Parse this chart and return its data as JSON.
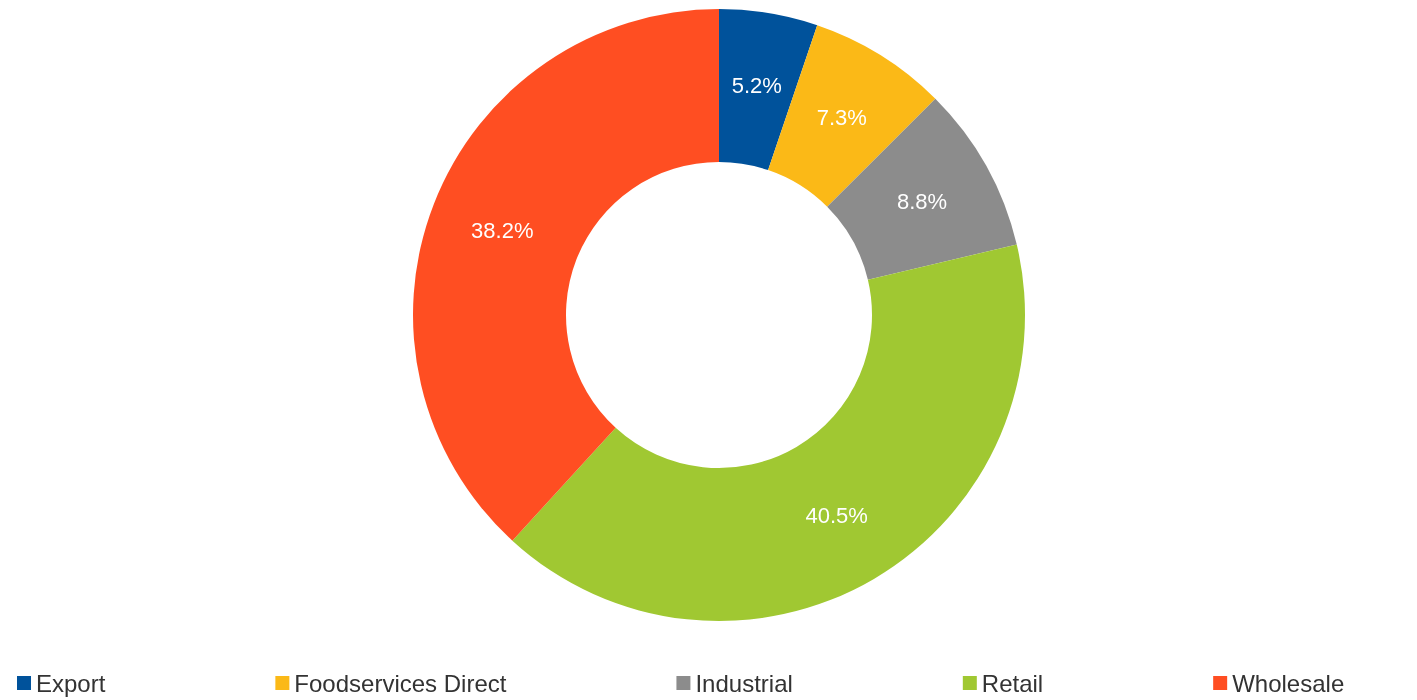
{
  "chart_data": {
    "type": "donut",
    "categories": [
      "Export",
      "Foodservices Direct",
      "Industrial",
      "Retail",
      "Wholesale"
    ],
    "values": [
      5.2,
      7.3,
      8.8,
      40.5,
      38.2
    ],
    "value_labels": [
      "5.2%",
      "7.3%",
      "8.8%",
      "40.5%",
      "38.2%"
    ],
    "colors": [
      "#00529b",
      "#fbb917",
      "#8c8c8c",
      "#a0c832",
      "#ff4e22"
    ],
    "legend": "bottom"
  }
}
